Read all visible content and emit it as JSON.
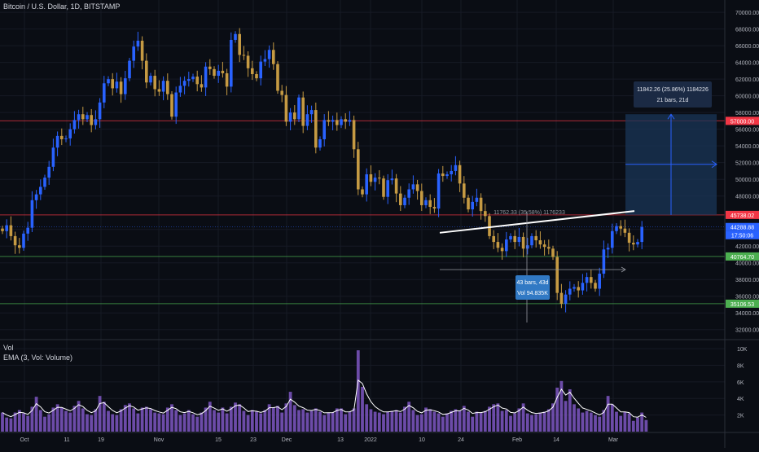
{
  "header": {
    "title": "Bitcoin / U.S. Dollar, 1D, BITSTAMP"
  },
  "volume_pane": {
    "title": "Vol",
    "ema_title": "EMA (3, Vol: Volume)"
  },
  "price_axis": {
    "ticks": [
      "70000.00",
      "68000.00",
      "66000.00",
      "64000.00",
      "62000.00",
      "60000.00",
      "58000.00",
      "56000.00",
      "54000.00",
      "52000.00",
      "50000.00",
      "48000.00",
      "44000.00",
      "42000.00",
      "40000.00",
      "38000.00",
      "36000.00",
      "34000.00",
      "32000.00"
    ]
  },
  "volume_axis": {
    "ticks": [
      "10K",
      "8K",
      "6K",
      "4K",
      "2K"
    ]
  },
  "time_axis": {
    "ticks": [
      "Oct",
      "11",
      "19",
      "Nov",
      "15",
      "23",
      "Dec",
      "13",
      "2022",
      "10",
      "24",
      "Feb",
      "14",
      "Mar"
    ]
  },
  "price_badges": [
    {
      "name": "resistance-57000",
      "text": "57000.00",
      "color": "#f23645"
    },
    {
      "name": "resistance-45738",
      "text": "45738.02",
      "color": "#f23645"
    },
    {
      "name": "last-price",
      "text": "44288.88",
      "color": "#2962ff"
    },
    {
      "name": "countdown",
      "text": "17:50:06",
      "color": "#2962ff"
    },
    {
      "name": "support-40764",
      "text": "40764.70",
      "color": "#4caf50"
    },
    {
      "name": "support-35106",
      "text": "35106.53",
      "color": "#4caf50"
    }
  ],
  "annotations": {
    "trendline_label": "11762.33 (35.58%) 1176233",
    "bars_box": {
      "line1": "43 bars, 43d",
      "line2": "Vol 94.835K"
    },
    "projection_box": {
      "line1": "11842.26 (25.86%) 1184226",
      "line2": "21 bars, 21d"
    }
  },
  "colors": {
    "up": "#2962ff",
    "down": "#c59a43",
    "volume": "#7e57c2",
    "resistance": "#f23645",
    "support": "#4caf50",
    "background": "#0a0d14"
  },
  "chart_data": {
    "type": "candlestick",
    "title": "Bitcoin / U.S. Dollar, 1D, BITSTAMP",
    "ylim": [
      31000,
      70500
    ],
    "levels": [
      57000.0,
      45738.02,
      40764.7,
      35106.53
    ],
    "last_price": 44288.88,
    "trendline": {
      "from": 43600,
      "to": 46200
    },
    "series_close": [
      43800,
      44500,
      43200,
      42100,
      41800,
      43500,
      44200,
      47500,
      48200,
      49100,
      50200,
      51500,
      53800,
      55200,
      54800,
      54900,
      56000,
      57100,
      57800,
      57200,
      57700,
      56500,
      57200,
      59200,
      61500,
      62000,
      60900,
      61700,
      60200,
      62100,
      64200,
      65900,
      66600,
      64200,
      61600,
      62400,
      60800,
      60500,
      61800,
      60200,
      57500,
      60400,
      61200,
      61800,
      62000,
      62300,
      61400,
      61000,
      63500,
      63200,
      62400,
      63000,
      62700,
      61100,
      66700,
      67400,
      64900,
      64800,
      63300,
      62600,
      62100,
      64100,
      64400,
      65500,
      63800,
      60600,
      60100,
      56900,
      58000,
      57200,
      59800,
      56400,
      57800,
      58300,
      53800,
      54800,
      57100,
      56900,
      57100,
      56500,
      57200,
      56900,
      57100,
      53600,
      48800,
      48200,
      50600,
      49700,
      50200,
      50100,
      47900,
      49900,
      50100,
      48300,
      46900,
      47800,
      48800,
      49400,
      48600,
      46900,
      47500,
      46700,
      46500,
      50700,
      50400,
      50600,
      51000,
      51700,
      49500,
      47800,
      46400,
      47300,
      47800,
      46200,
      45600,
      43200,
      42500,
      41800,
      41400,
      42800,
      43200,
      42500,
      43100,
      41700,
      42100,
      43200,
      42700,
      42200,
      41900,
      41700,
      40700,
      36400,
      35100,
      36200,
      36900,
      37100,
      36700,
      37600,
      38300,
      37600,
      36900,
      38700,
      41600,
      41800,
      43800,
      44400,
      44100,
      43600,
      42400,
      42200,
      42500,
      44300
    ],
    "series_volume": [
      2.3,
      1.7,
      1.6,
      2.3,
      2.6,
      2.2,
      1.9,
      3.0,
      4.2,
      2.6,
      1.8,
      2.1,
      2.9,
      3.3,
      2.9,
      2.5,
      2.3,
      3.1,
      3.7,
      2.8,
      2.1,
      2.0,
      2.7,
      4.3,
      3.6,
      2.5,
      2.1,
      2.0,
      2.7,
      3.2,
      3.4,
      2.8,
      2.2,
      2.9,
      3.0,
      2.7,
      2.3,
      2.2,
      2.1,
      2.9,
      3.3,
      2.6,
      2.0,
      2.2,
      2.6,
      2.1,
      1.8,
      2.3,
      2.9,
      3.6,
      2.6,
      2.3,
      2.9,
      2.2,
      3.0,
      3.5,
      3.3,
      2.5,
      2.0,
      2.6,
      2.4,
      2.2,
      2.6,
      3.3,
      2.9,
      3.1,
      2.3,
      3.4,
      4.8,
      3.2,
      2.6,
      2.7,
      2.3,
      2.5,
      2.8,
      2.4,
      2.0,
      2.3,
      2.3,
      2.8,
      2.8,
      2.1,
      2.4,
      2.8,
      9.8,
      5.4,
      3.3,
      2.7,
      2.4,
      2.3,
      2.1,
      2.4,
      2.5,
      2.6,
      2.3,
      3.0,
      3.6,
      2.6,
      2.0,
      2.1,
      2.9,
      2.7,
      2.4,
      2.2,
      1.8,
      2.2,
      2.5,
      2.7,
      2.5,
      3.1,
      2.4,
      1.8,
      2.4,
      2.3,
      2.5,
      3.0,
      3.3,
      3.4,
      2.5,
      2.6,
      1.9,
      2.2,
      2.8,
      3.4,
      2.2,
      2.0,
      2.1,
      2.3,
      2.4,
      2.7,
      3.4,
      5.3,
      6.1,
      3.7,
      5.1,
      3.3,
      2.8,
      2.3,
      2.5,
      2.3,
      2.0,
      1.8,
      2.6,
      4.3,
      3.3,
      2.4,
      1.9,
      2.4,
      2.2,
      1.3,
      1.7,
      2.3,
      1.4
    ]
  }
}
